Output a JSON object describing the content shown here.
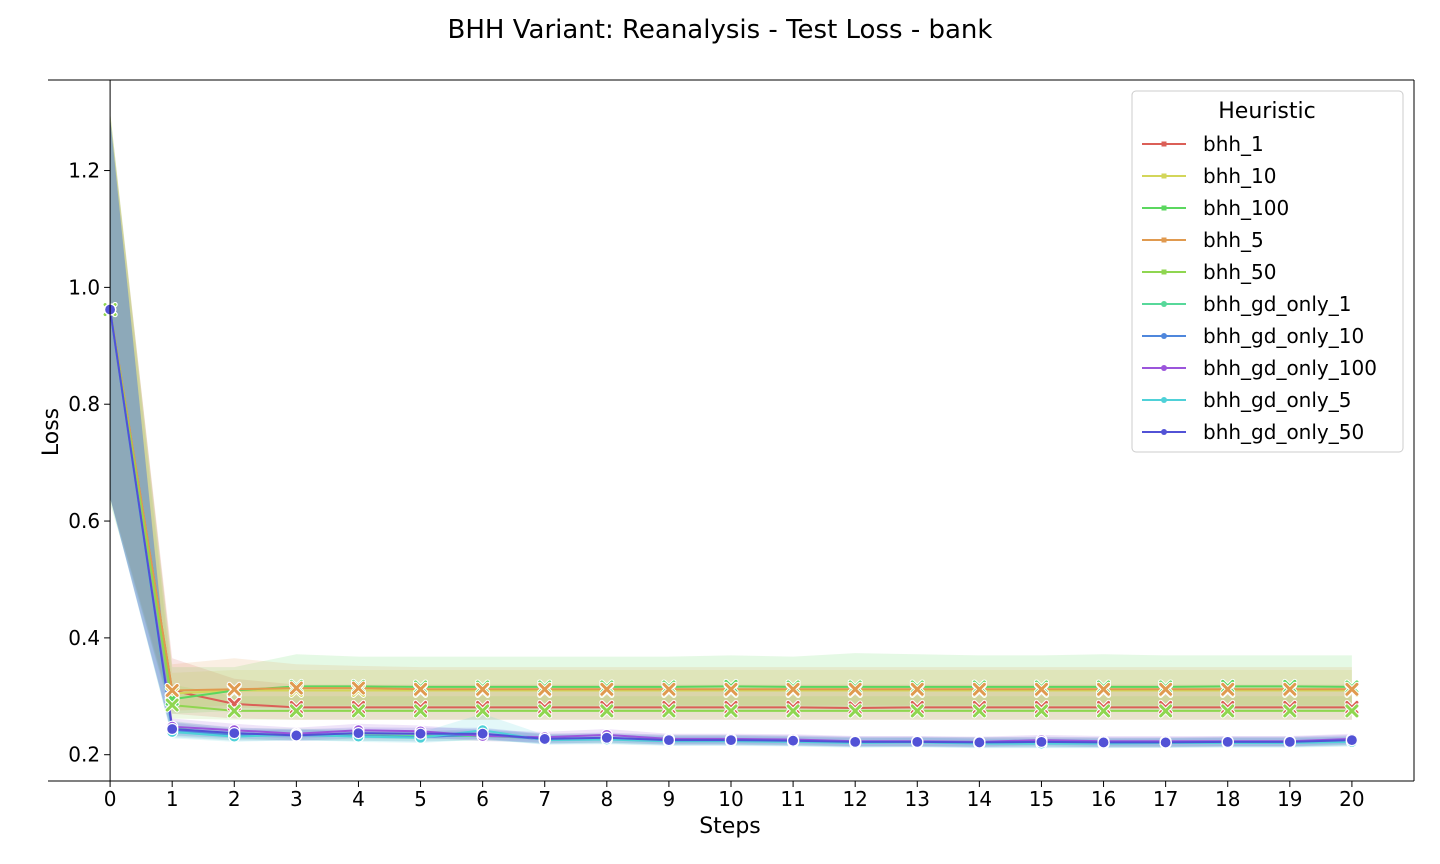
{
  "chart_data": {
    "type": "line",
    "title": "BHH Variant: Reanalysis - Test Loss - bank",
    "xlabel": "Steps",
    "ylabel": "Loss",
    "x": [
      0,
      1,
      2,
      3,
      4,
      5,
      6,
      7,
      8,
      9,
      10,
      11,
      12,
      13,
      14,
      15,
      16,
      17,
      18,
      19,
      20
    ],
    "xlim": [
      -1.0,
      21.0
    ],
    "ylim": [
      0.155,
      1.355
    ],
    "yticks": [
      0.2,
      0.4,
      0.6,
      0.8,
      1.0,
      1.2
    ],
    "ytick_labels": [
      "0.2",
      "0.4",
      "0.6",
      "0.8",
      "1.0",
      "1.2"
    ],
    "grid": false,
    "legend": {
      "title": "Heuristic",
      "placement": "top-right"
    },
    "series": [
      {
        "name": "bhh_1",
        "color": "#db5f57",
        "values": [
          0.962,
          0.31,
          0.287,
          0.281,
          0.281,
          0.281,
          0.281,
          0.281,
          0.281,
          0.281,
          0.281,
          0.281,
          0.28,
          0.281,
          0.281,
          0.281,
          0.281,
          0.281,
          0.281,
          0.281,
          0.281
        ],
        "lower": [
          0.64,
          0.27,
          0.262,
          0.26,
          0.26,
          0.26,
          0.26,
          0.26,
          0.26,
          0.26,
          0.26,
          0.26,
          0.26,
          0.26,
          0.26,
          0.26,
          0.26,
          0.26,
          0.26,
          0.26,
          0.26
        ],
        "upper": [
          1.29,
          0.365,
          0.33,
          0.32,
          0.32,
          0.32,
          0.32,
          0.32,
          0.32,
          0.32,
          0.32,
          0.32,
          0.32,
          0.32,
          0.32,
          0.32,
          0.32,
          0.32,
          0.32,
          0.32,
          0.32
        ]
      },
      {
        "name": "bhh_10",
        "color": "#d3d65a",
        "values": [
          0.962,
          0.305,
          0.31,
          0.31,
          0.31,
          0.31,
          0.31,
          0.31,
          0.31,
          0.31,
          0.31,
          0.31,
          0.31,
          0.31,
          0.31,
          0.31,
          0.31,
          0.31,
          0.31,
          0.31,
          0.31
        ],
        "lower": [
          0.64,
          0.28,
          0.285,
          0.285,
          0.285,
          0.285,
          0.285,
          0.285,
          0.285,
          0.285,
          0.285,
          0.285,
          0.285,
          0.285,
          0.285,
          0.285,
          0.285,
          0.285,
          0.285,
          0.285,
          0.285
        ],
        "upper": [
          1.3,
          0.34,
          0.345,
          0.345,
          0.345,
          0.345,
          0.345,
          0.345,
          0.345,
          0.345,
          0.345,
          0.345,
          0.345,
          0.345,
          0.345,
          0.345,
          0.345,
          0.345,
          0.345,
          0.345,
          0.345
        ]
      },
      {
        "name": "bhh_100",
        "color": "#5bd75f",
        "values": [
          0.962,
          0.295,
          0.31,
          0.317,
          0.317,
          0.316,
          0.316,
          0.316,
          0.316,
          0.316,
          0.317,
          0.316,
          0.316,
          0.316,
          0.316,
          0.316,
          0.316,
          0.316,
          0.317,
          0.317,
          0.316
        ],
        "lower": [
          0.63,
          0.27,
          0.275,
          0.275,
          0.275,
          0.275,
          0.275,
          0.275,
          0.275,
          0.275,
          0.275,
          0.275,
          0.275,
          0.275,
          0.275,
          0.275,
          0.275,
          0.275,
          0.275,
          0.275,
          0.275
        ],
        "upper": [
          1.3,
          0.35,
          0.35,
          0.372,
          0.368,
          0.368,
          0.368,
          0.368,
          0.368,
          0.368,
          0.37,
          0.368,
          0.374,
          0.372,
          0.37,
          0.37,
          0.372,
          0.37,
          0.37,
          0.37,
          0.37
        ]
      },
      {
        "name": "bhh_5",
        "color": "#e09a4f",
        "values": [
          0.962,
          0.31,
          0.312,
          0.314,
          0.314,
          0.312,
          0.312,
          0.312,
          0.312,
          0.312,
          0.312,
          0.312,
          0.312,
          0.312,
          0.312,
          0.312,
          0.312,
          0.312,
          0.312,
          0.312,
          0.312
        ],
        "lower": [
          0.64,
          0.275,
          0.28,
          0.28,
          0.28,
          0.28,
          0.28,
          0.28,
          0.28,
          0.28,
          0.28,
          0.28,
          0.28,
          0.28,
          0.28,
          0.28,
          0.28,
          0.28,
          0.28,
          0.28,
          0.28
        ],
        "upper": [
          1.3,
          0.355,
          0.365,
          0.355,
          0.352,
          0.35,
          0.35,
          0.35,
          0.35,
          0.35,
          0.35,
          0.35,
          0.35,
          0.35,
          0.35,
          0.35,
          0.35,
          0.35,
          0.35,
          0.35,
          0.35
        ]
      },
      {
        "name": "bhh_50",
        "color": "#8fd650",
        "values": [
          0.962,
          0.285,
          0.275,
          0.275,
          0.275,
          0.275,
          0.275,
          0.275,
          0.275,
          0.275,
          0.275,
          0.275,
          0.275,
          0.275,
          0.275,
          0.275,
          0.275,
          0.275,
          0.275,
          0.275,
          0.275
        ],
        "lower": [
          0.64,
          0.262,
          0.26,
          0.26,
          0.26,
          0.26,
          0.26,
          0.26,
          0.26,
          0.26,
          0.26,
          0.26,
          0.26,
          0.26,
          0.26,
          0.26,
          0.26,
          0.26,
          0.26,
          0.26,
          0.26
        ],
        "upper": [
          1.3,
          0.32,
          0.3,
          0.3,
          0.3,
          0.3,
          0.3,
          0.3,
          0.3,
          0.3,
          0.3,
          0.3,
          0.3,
          0.3,
          0.3,
          0.3,
          0.3,
          0.3,
          0.3,
          0.3,
          0.3
        ]
      },
      {
        "name": "bhh_gd_only_1",
        "color": "#57d89a",
        "values": [
          0.962,
          0.245,
          0.235,
          0.235,
          0.233,
          0.232,
          0.232,
          0.228,
          0.228,
          0.226,
          0.226,
          0.224,
          0.222,
          0.222,
          0.222,
          0.222,
          0.221,
          0.221,
          0.222,
          0.222,
          0.224
        ],
        "lower": [
          0.64,
          0.232,
          0.225,
          0.225,
          0.224,
          0.224,
          0.224,
          0.22,
          0.22,
          0.218,
          0.218,
          0.216,
          0.214,
          0.214,
          0.214,
          0.214,
          0.213,
          0.213,
          0.214,
          0.214,
          0.216
        ],
        "upper": [
          1.29,
          0.258,
          0.245,
          0.245,
          0.243,
          0.241,
          0.241,
          0.236,
          0.236,
          0.234,
          0.234,
          0.232,
          0.23,
          0.23,
          0.23,
          0.23,
          0.229,
          0.229,
          0.23,
          0.23,
          0.232
        ]
      },
      {
        "name": "bhh_gd_only_10",
        "color": "#4f87dc",
        "values": [
          0.962,
          0.242,
          0.233,
          0.233,
          0.232,
          0.23,
          0.235,
          0.226,
          0.227,
          0.224,
          0.224,
          0.223,
          0.221,
          0.221,
          0.22,
          0.22,
          0.22,
          0.22,
          0.221,
          0.221,
          0.223
        ],
        "lower": [
          0.64,
          0.23,
          0.224,
          0.224,
          0.224,
          0.222,
          0.226,
          0.218,
          0.219,
          0.216,
          0.216,
          0.215,
          0.213,
          0.213,
          0.212,
          0.212,
          0.212,
          0.212,
          0.213,
          0.213,
          0.215
        ],
        "upper": [
          1.29,
          0.255,
          0.243,
          0.243,
          0.241,
          0.239,
          0.245,
          0.234,
          0.235,
          0.232,
          0.232,
          0.231,
          0.229,
          0.229,
          0.228,
          0.228,
          0.228,
          0.228,
          0.229,
          0.229,
          0.231
        ]
      },
      {
        "name": "bhh_gd_only_100",
        "color": "#9b55db",
        "values": [
          0.962,
          0.248,
          0.242,
          0.236,
          0.242,
          0.24,
          0.232,
          0.23,
          0.234,
          0.227,
          0.227,
          0.226,
          0.223,
          0.223,
          0.222,
          0.225,
          0.223,
          0.223,
          0.223,
          0.223,
          0.227
        ],
        "lower": [
          0.64,
          0.236,
          0.232,
          0.227,
          0.232,
          0.23,
          0.223,
          0.222,
          0.225,
          0.219,
          0.219,
          0.218,
          0.215,
          0.215,
          0.214,
          0.217,
          0.215,
          0.215,
          0.215,
          0.215,
          0.219
        ],
        "upper": [
          1.29,
          0.262,
          0.253,
          0.246,
          0.253,
          0.25,
          0.242,
          0.239,
          0.244,
          0.236,
          0.236,
          0.235,
          0.232,
          0.232,
          0.231,
          0.234,
          0.232,
          0.232,
          0.232,
          0.232,
          0.236
        ]
      },
      {
        "name": "bhh_gd_only_5",
        "color": "#4fd1d8",
        "values": [
          0.962,
          0.239,
          0.231,
          0.234,
          0.231,
          0.229,
          0.242,
          0.225,
          0.226,
          0.223,
          0.223,
          0.222,
          0.22,
          0.221,
          0.219,
          0.219,
          0.219,
          0.22,
          0.22,
          0.22,
          0.222
        ],
        "lower": [
          0.64,
          0.228,
          0.222,
          0.225,
          0.222,
          0.22,
          0.226,
          0.217,
          0.218,
          0.215,
          0.215,
          0.214,
          0.212,
          0.213,
          0.211,
          0.211,
          0.211,
          0.212,
          0.212,
          0.212,
          0.214
        ],
        "upper": [
          1.29,
          0.25,
          0.241,
          0.243,
          0.24,
          0.238,
          0.27,
          0.234,
          0.234,
          0.231,
          0.231,
          0.23,
          0.228,
          0.229,
          0.227,
          0.227,
          0.227,
          0.228,
          0.228,
          0.228,
          0.23
        ]
      },
      {
        "name": "bhh_gd_only_50",
        "color": "#5252d6",
        "values": [
          0.962,
          0.244,
          0.237,
          0.233,
          0.237,
          0.236,
          0.236,
          0.227,
          0.229,
          0.225,
          0.225,
          0.224,
          0.222,
          0.222,
          0.221,
          0.222,
          0.221,
          0.221,
          0.222,
          0.222,
          0.225
        ],
        "lower": [
          0.64,
          0.233,
          0.228,
          0.224,
          0.228,
          0.227,
          0.227,
          0.219,
          0.221,
          0.217,
          0.217,
          0.216,
          0.214,
          0.214,
          0.213,
          0.214,
          0.213,
          0.213,
          0.214,
          0.214,
          0.217
        ],
        "upper": [
          1.29,
          0.256,
          0.247,
          0.243,
          0.247,
          0.246,
          0.246,
          0.236,
          0.238,
          0.234,
          0.234,
          0.233,
          0.231,
          0.231,
          0.23,
          0.231,
          0.23,
          0.23,
          0.231,
          0.231,
          0.234
        ]
      }
    ]
  }
}
